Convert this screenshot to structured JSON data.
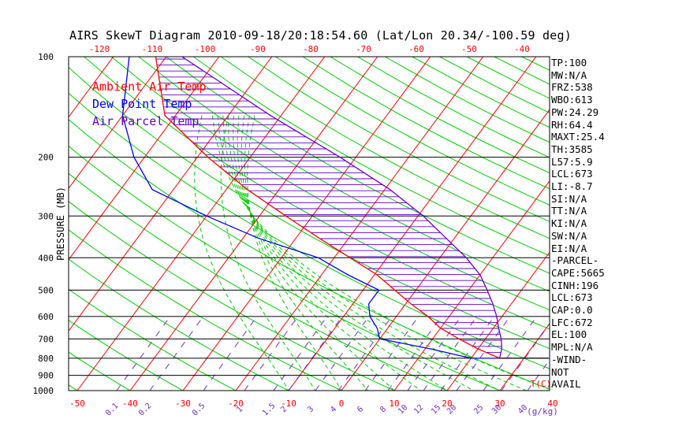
{
  "title": "AIRS SkewT Diagram 2010-09-18/20:18:54.60 (Lat/Lon 20.34/-100.59 deg)",
  "legend": [
    {
      "label": "Ambient Air Temp",
      "color": "#ff0000"
    },
    {
      "label": "Dew Point Temp",
      "color": "#0000ff"
    },
    {
      "label": "Air Parcel Temp",
      "color": "#6a00c8"
    }
  ],
  "indices": [
    "TP:100",
    "MW:N/A",
    "FRZ:538",
    "WBO:613",
    "PW:24.29",
    "RH:64.4",
    "MAXT:25.4",
    "TH:3585",
    "L57:5.9",
    "LCL:673",
    "LI:-8.7",
    "SI:N/A",
    "TT:N/A",
    "KI:N/A",
    "SW:N/A",
    "EI:N/A",
    "-PARCEL-",
    "CAPE:5665",
    "CINH:196",
    "LCL:673",
    "CAP:0.0",
    "LFC:672",
    "EL:100",
    "MPL:N/A",
    "-WIND-",
    "NOT",
    "AVAIL"
  ],
  "chart_data": {
    "type": "line",
    "title": "AIRS SkewT Diagram 2010-09-18/20:18:54.60 (Lat/Lon 20.34/-100.59 deg)",
    "ylabel": "PRESSURE (MB)",
    "xlabel": "T(C)",
    "mixing_ratio_label": "(g/kg)",
    "ylim": [
      1000,
      100
    ],
    "y_scale": "log",
    "pressure_ticks": [
      100,
      200,
      300,
      400,
      500,
      600,
      700,
      800,
      900,
      1000
    ],
    "bottom_temp_ticks": [
      -50,
      -40,
      -30,
      -20,
      -10,
      0,
      10,
      20,
      30,
      40
    ],
    "top_temp_ticks": [
      -120,
      -110,
      -100,
      -90,
      -80,
      -70,
      -60,
      -50,
      -40
    ],
    "mixing_ratio_ticks": [
      "0.1",
      "0.2",
      "0.5",
      "1",
      "1.5",
      "2",
      "3",
      "4",
      "6",
      "8",
      "10",
      "12",
      "15",
      "20",
      "25",
      "30",
      "40"
    ],
    "series": [
      {
        "name": "Ambient Air Temp",
        "color": "#ff0000",
        "points": [
          [
            100,
            -82
          ],
          [
            150,
            -72
          ],
          [
            200,
            -58
          ],
          [
            250,
            -46
          ],
          [
            300,
            -35
          ],
          [
            350,
            -25.5
          ],
          [
            400,
            -17
          ],
          [
            450,
            -9.5
          ],
          [
            500,
            -4
          ],
          [
            550,
            1
          ],
          [
            600,
            6
          ],
          [
            650,
            10
          ],
          [
            700,
            15
          ],
          [
            750,
            20
          ],
          [
            800,
            25.4
          ]
        ]
      },
      {
        "name": "Dew Point Temp",
        "color": "#0000ff",
        "points": [
          [
            100,
            -87
          ],
          [
            150,
            -80
          ],
          [
            200,
            -72
          ],
          [
            250,
            -64
          ],
          [
            300,
            -50
          ],
          [
            350,
            -37
          ],
          [
            400,
            -23
          ],
          [
            450,
            -15
          ],
          [
            500,
            -7
          ],
          [
            550,
            -7
          ],
          [
            600,
            -5
          ],
          [
            650,
            -2
          ],
          [
            700,
            0
          ],
          [
            750,
            11
          ],
          [
            800,
            20
          ]
        ]
      },
      {
        "name": "Air Parcel Temp",
        "color": "#6a00c8",
        "points": [
          [
            100,
            -77
          ],
          [
            150,
            -52
          ],
          [
            200,
            -33
          ],
          [
            250,
            -19
          ],
          [
            300,
            -9
          ],
          [
            350,
            -1.5
          ],
          [
            400,
            5
          ],
          [
            450,
            10
          ],
          [
            500,
            13.5
          ],
          [
            550,
            16.5
          ],
          [
            600,
            19
          ],
          [
            650,
            21
          ],
          [
            700,
            23
          ],
          [
            750,
            24.5
          ],
          [
            800,
            25.4
          ]
        ]
      }
    ]
  }
}
